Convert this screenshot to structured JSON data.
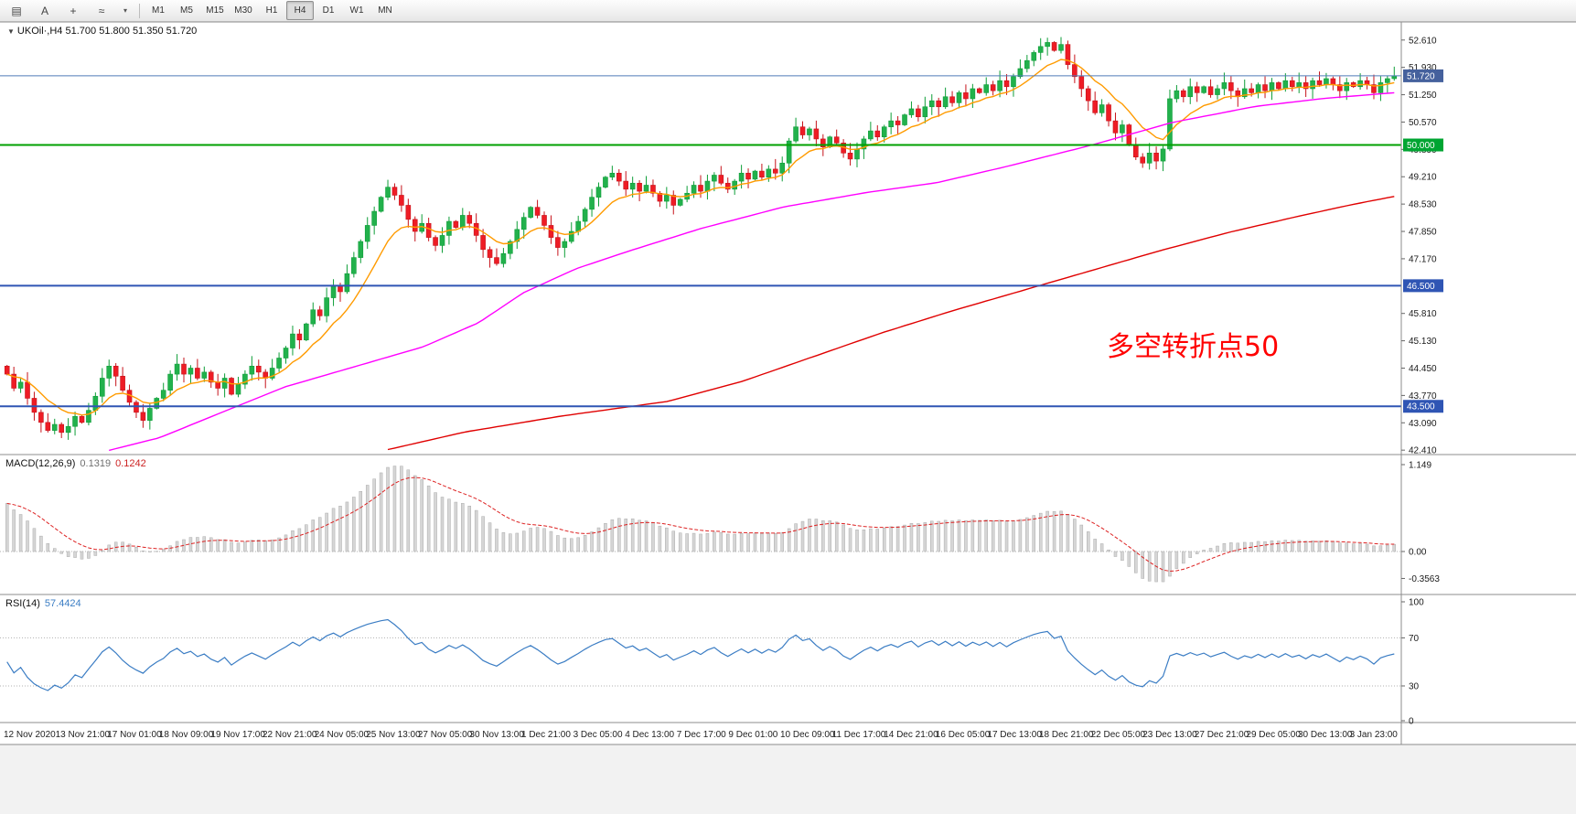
{
  "toolbar": {
    "icons": [
      {
        "name": "chart-grip-icon",
        "glyph": "▤"
      },
      {
        "name": "annotate-a-icon",
        "glyph": "A"
      },
      {
        "name": "crosshair-icon",
        "glyph": "+"
      },
      {
        "name": "indicator-wave-icon",
        "glyph": "≈"
      },
      {
        "name": "dropdown-caret-icon",
        "glyph": "▾"
      }
    ],
    "timeframes": [
      "M1",
      "M5",
      "M15",
      "M30",
      "H1",
      "H4",
      "D1",
      "W1",
      "MN"
    ],
    "active_timeframe": "H4"
  },
  "symbol_bar": {
    "collapse_icon": "▼",
    "symbol": "UKOil·,H4",
    "open": "51.700",
    "high": "51.800",
    "low": "51.350",
    "close": "51.720"
  },
  "annotation": {
    "text": "多空转折点50",
    "color": "#ff0000"
  },
  "price_axis": {
    "ticks": [
      "52.610",
      "51.930",
      "51.250",
      "50.570",
      "49.890",
      "49.210",
      "48.530",
      "47.850",
      "47.170",
      "45.810",
      "45.130",
      "44.450",
      "43.770",
      "43.090",
      "42.410"
    ],
    "badges": [
      {
        "label": "51.720",
        "price": 51.72,
        "color": "#45619d"
      },
      {
        "label": "50.000",
        "price": 50.0,
        "color": "#00a532"
      },
      {
        "label": "46.500",
        "price": 46.5,
        "color": "#2f55b4"
      },
      {
        "label": "43.500",
        "price": 43.5,
        "color": "#2f55b4"
      }
    ]
  },
  "hlines": [
    {
      "price": 51.72,
      "color": "#4f7ab8",
      "width": 1
    },
    {
      "price": 50.0,
      "color": "#00a000",
      "width": 2
    },
    {
      "price": 46.5,
      "color": "#2f55b4",
      "width": 2
    },
    {
      "price": 43.5,
      "color": "#2f55b4",
      "width": 2
    }
  ],
  "macd_panel": {
    "label": "MACD(12,26,9)",
    "main_value": "0.1319",
    "signal_value": "0.1242",
    "axis_labels": [
      {
        "text": "1.149",
        "value": 1.149
      },
      {
        "text": "0.00",
        "value": 0
      },
      {
        "text": "-0.3563",
        "value": -0.3563
      }
    ]
  },
  "rsi_panel": {
    "label": "RSI(14)",
    "value": "57.4424",
    "axis_labels": [
      {
        "text": "100",
        "value": 100
      },
      {
        "text": "70",
        "value": 70
      },
      {
        "text": "30",
        "value": 30
      },
      {
        "text": "0",
        "value": 0
      }
    ],
    "levels": [
      70,
      30
    ]
  },
  "chart_data": {
    "type": "candlestick",
    "title": "UKOil H4",
    "symbol": "UKOil·",
    "timeframe": "H4",
    "last_ohlc": {
      "open": 51.7,
      "high": 51.8,
      "low": 51.35,
      "close": 51.72
    },
    "price_axis_range": [
      42.3,
      53.06
    ],
    "first_open": 44.5,
    "closes": [
      44.3,
      43.95,
      44.1,
      43.7,
      43.35,
      43.1,
      42.9,
      43.05,
      42.85,
      43.0,
      43.25,
      43.1,
      43.4,
      43.75,
      44.2,
      44.5,
      44.25,
      43.9,
      43.6,
      43.35,
      43.15,
      43.45,
      43.7,
      43.9,
      44.3,
      44.55,
      44.3,
      44.45,
      44.2,
      44.35,
      44.1,
      43.95,
      44.2,
      43.8,
      44.05,
      44.3,
      44.5,
      44.35,
      44.2,
      44.45,
      44.7,
      44.95,
      45.3,
      45.15,
      45.55,
      45.9,
      45.75,
      46.2,
      46.5,
      46.35,
      46.8,
      47.2,
      47.6,
      48.0,
      48.35,
      48.7,
      48.95,
      48.75,
      48.5,
      48.15,
      47.85,
      48.05,
      47.7,
      47.5,
      47.75,
      48.1,
      47.95,
      48.25,
      48.05,
      47.75,
      47.4,
      47.2,
      47.05,
      47.3,
      47.6,
      47.9,
      48.2,
      48.45,
      48.25,
      48.0,
      47.7,
      47.45,
      47.6,
      47.85,
      48.1,
      48.4,
      48.7,
      48.95,
      49.2,
      49.3,
      49.1,
      48.9,
      49.05,
      48.85,
      49.0,
      48.8,
      48.6,
      48.75,
      48.5,
      48.65,
      48.8,
      49.0,
      48.85,
      49.1,
      49.25,
      49.05,
      48.9,
      49.1,
      49.3,
      49.15,
      49.35,
      49.2,
      49.4,
      49.3,
      49.55,
      50.1,
      50.45,
      50.25,
      50.4,
      50.15,
      49.95,
      50.2,
      50.05,
      49.8,
      49.65,
      49.9,
      50.15,
      50.35,
      50.2,
      50.45,
      50.6,
      50.5,
      50.75,
      50.9,
      50.7,
      50.95,
      51.1,
      50.95,
      51.2,
      51.05,
      51.3,
      51.15,
      51.4,
      51.3,
      51.5,
      51.35,
      51.6,
      51.45,
      51.7,
      51.9,
      52.1,
      52.3,
      52.45,
      52.55,
      52.35,
      52.5,
      52.0,
      51.7,
      51.4,
      51.1,
      50.8,
      51.0,
      50.6,
      50.3,
      50.5,
      50.0,
      49.7,
      49.55,
      49.8,
      49.6,
      49.9,
      51.15,
      51.35,
      51.2,
      51.45,
      51.3,
      51.45,
      51.25,
      51.4,
      51.55,
      51.35,
      51.2,
      51.4,
      51.3,
      51.5,
      51.35,
      51.55,
      51.4,
      51.6,
      51.45,
      51.55,
      51.4,
      51.6,
      51.5,
      51.65,
      51.5,
      51.35,
      51.55,
      51.45,
      51.6,
      51.5,
      51.3,
      51.55,
      51.65,
      51.72
    ],
    "x_labels": [
      "12 Nov 2020",
      "13 Nov 21:00",
      "17 Nov 01:00",
      "18 Nov 09:00",
      "19 Nov 17:00",
      "22 Nov 21:00",
      "24 Nov 05:00",
      "25 Nov 13:00",
      "27 Nov 05:00",
      "30 Nov 13:00",
      "1 Dec 21:00",
      "3 Dec 05:00",
      "4 Dec 13:00",
      "7 Dec 17:00",
      "9 Dec 01:00",
      "10 Dec 09:00",
      "11 Dec 17:00",
      "14 Dec 21:00",
      "16 Dec 05:00",
      "17 Dec 13:00",
      "18 Dec 21:00",
      "22 Dec 05:00",
      "23 Dec 13:00",
      "27 Dec 21:00",
      "29 Dec 05:00",
      "30 Dec 13:00",
      "3 Jan 23:00"
    ],
    "moving_averages": [
      {
        "name": "fast",
        "color": "#ff9b00",
        "type": "ema",
        "period": 10
      },
      {
        "name": "medium",
        "color": "#ff00ff",
        "type": "anchored",
        "anchors": [
          [
            0.073,
            42.4
          ],
          [
            0.11,
            42.72
          ],
          [
            0.157,
            43.38
          ],
          [
            0.2,
            43.98
          ],
          [
            0.25,
            44.48
          ],
          [
            0.3,
            44.98
          ],
          [
            0.34,
            45.58
          ],
          [
            0.372,
            46.32
          ],
          [
            0.41,
            46.92
          ],
          [
            0.45,
            47.38
          ],
          [
            0.5,
            47.92
          ],
          [
            0.56,
            48.46
          ],
          [
            0.62,
            48.82
          ],
          [
            0.67,
            49.06
          ],
          [
            0.72,
            49.46
          ],
          [
            0.78,
            49.98
          ],
          [
            0.84,
            50.56
          ],
          [
            0.9,
            50.96
          ],
          [
            0.95,
            51.16
          ],
          [
            1.0,
            51.3
          ]
        ]
      },
      {
        "name": "slow",
        "color": "#e00000",
        "type": "anchored",
        "anchors": [
          [
            0.274,
            42.42
          ],
          [
            0.33,
            42.86
          ],
          [
            0.4,
            43.26
          ],
          [
            0.476,
            43.62
          ],
          [
            0.53,
            44.12
          ],
          [
            0.58,
            44.72
          ],
          [
            0.63,
            45.32
          ],
          [
            0.68,
            45.86
          ],
          [
            0.73,
            46.36
          ],
          [
            0.78,
            46.86
          ],
          [
            0.83,
            47.36
          ],
          [
            0.88,
            47.82
          ],
          [
            0.93,
            48.22
          ],
          [
            0.97,
            48.52
          ],
          [
            1.0,
            48.72
          ]
        ]
      }
    ],
    "indicators": {
      "macd": {
        "params": [
          12,
          26,
          9
        ],
        "display_range": [
          -0.42,
          1.149
        ]
      },
      "rsi": {
        "params": [
          14
        ],
        "display_range": [
          0,
          100
        ]
      }
    },
    "colors": {
      "up": "#22b14c",
      "up_stroke": "#0e9e38",
      "down": "#ee1c25",
      "down_stroke": "#c6131b",
      "histogram": "#d6d6d6",
      "histogram_stroke": "#ababab",
      "signal": "#dd2222",
      "rsi_line": "#3b7dc4",
      "grid_dotted": "#b0b0b0"
    }
  }
}
